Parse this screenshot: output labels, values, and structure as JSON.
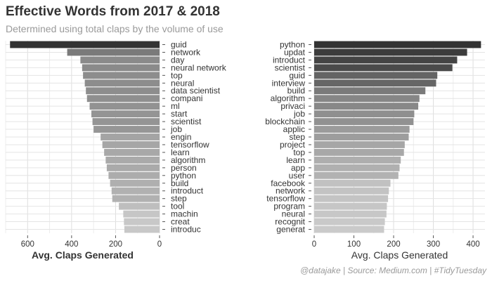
{
  "title": "Effective Words from 2017 & 2018",
  "subtitle": "Determined using total claps by the volume of use",
  "caption": "@datajake | Source: Medium.com | #TidyTuesday",
  "chart_data": [
    {
      "type": "bar",
      "orientation": "horizontal",
      "reversed_x": true,
      "xlabel": "Avg. Claps Generated",
      "xlim": [
        0,
        700
      ],
      "xticks": [
        600,
        400,
        200,
        0
      ],
      "grid": true,
      "categories": [
        "guid",
        "network",
        "day",
        "neural network",
        "top",
        "neural",
        "data scientist",
        "compani",
        "ml",
        "start",
        "scientist",
        "job",
        "engin",
        "tensorflow",
        "learn",
        "algorithm",
        "person",
        "python",
        "build",
        "introduct",
        "step",
        "tool",
        "machin",
        "creat",
        "introduc"
      ],
      "values": [
        680,
        420,
        360,
        352,
        348,
        340,
        335,
        330,
        318,
        310,
        305,
        300,
        268,
        260,
        252,
        245,
        240,
        232,
        225,
        218,
        215,
        185,
        165,
        162,
        160
      ],
      "colors": [
        "#333333",
        "#7a7a7a",
        "#8a8a8a",
        "#8a8a8a",
        "#8d8d8d",
        "#8d8d8d",
        "#8d8d8d",
        "#8f8f8f",
        "#929292",
        "#949494",
        "#949494",
        "#969696",
        "#a4a4a4",
        "#a6a6a6",
        "#a8a8a8",
        "#aaaaaa",
        "#aaaaaa",
        "#acacac",
        "#afafaf",
        "#b1b1b1",
        "#b1b1b1",
        "#bebebe",
        "#c6c6c6",
        "#c8c8c8",
        "#c8c8c8"
      ]
    },
    {
      "type": "bar",
      "orientation": "horizontal",
      "reversed_x": false,
      "xlabel": "Avg. Claps Generated",
      "xlim": [
        0,
        430
      ],
      "xticks": [
        0,
        100,
        200,
        300,
        400
      ],
      "grid": true,
      "categories": [
        "python",
        "updat",
        "introduct",
        "scientist",
        "guid",
        "interview",
        "build",
        "algorithm",
        "privaci",
        "job",
        "blockchain",
        "applic",
        "step",
        "project",
        "top",
        "learn",
        "app",
        "user",
        "facebook",
        "network",
        "tensorflow",
        "program",
        "neural",
        "recognit",
        "generat"
      ],
      "values": [
        420,
        385,
        360,
        348,
        310,
        307,
        280,
        265,
        262,
        252,
        250,
        240,
        238,
        228,
        226,
        218,
        215,
        212,
        192,
        188,
        186,
        183,
        182,
        178,
        176
      ],
      "colors": [
        "#333333",
        "#3c3c3c",
        "#444444",
        "#4a4a4a",
        "#646464",
        "#666666",
        "#7a7a7a",
        "#868686",
        "#888888",
        "#8f8f8f",
        "#919191",
        "#9b9b9b",
        "#9d9d9d",
        "#a6a6a6",
        "#a8a8a8",
        "#aeaeae",
        "#b0b0b0",
        "#b2b2b2",
        "#c1c1c1",
        "#c3c3c3",
        "#c4c4c4",
        "#c6c6c6",
        "#c7c7c7",
        "#c9c9c9",
        "#cacaca"
      ]
    }
  ]
}
